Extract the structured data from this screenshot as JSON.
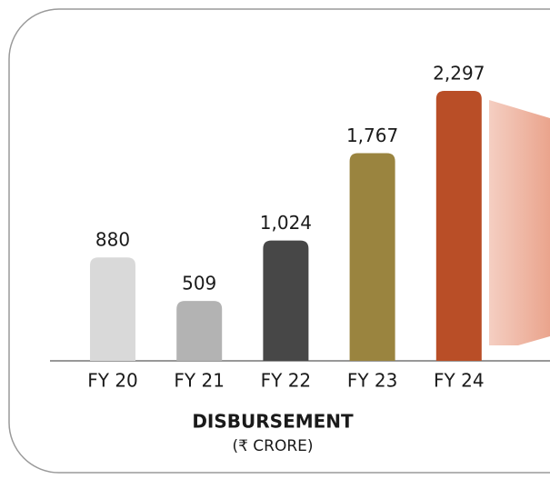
{
  "chart_data": {
    "type": "bar",
    "title": "DISBURSEMENT",
    "subtitle": "(₹ CRORE)",
    "categories": [
      "FY 20",
      "FY 21",
      "FY 22",
      "FY 23",
      "FY 24"
    ],
    "values": [
      880,
      509,
      1024,
      1767,
      2297
    ],
    "value_labels": [
      "880",
      "509",
      "1,024",
      "1,767",
      "2,297"
    ],
    "colors": [
      "#d9d9d9",
      "#b3b3b3",
      "#474747",
      "#9a843f",
      "#b94e27"
    ]
  }
}
